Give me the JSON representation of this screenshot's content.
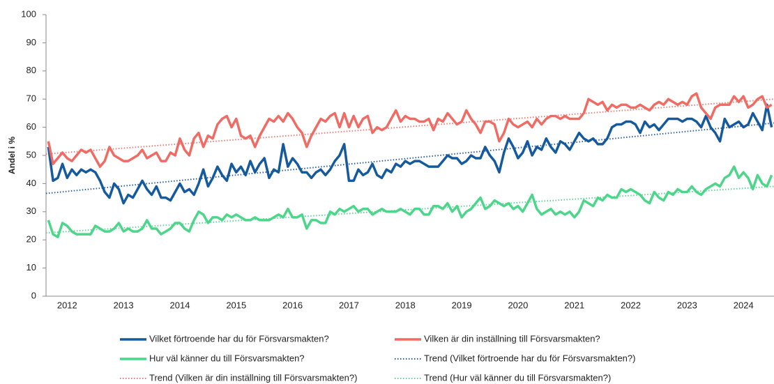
{
  "chart_data": {
    "type": "line",
    "y_label": "Andel i %",
    "ylim": [
      0,
      100
    ],
    "yticks": [
      0,
      10,
      20,
      30,
      40,
      50,
      60,
      70,
      80,
      90,
      100
    ],
    "grid": false,
    "categories": [
      null,
      null,
      null,
      null,
      "2012",
      null,
      null,
      null,
      null,
      null,
      null,
      null,
      null,
      null,
      null,
      null,
      "2013",
      null,
      null,
      null,
      null,
      null,
      null,
      null,
      null,
      null,
      null,
      null,
      "2014",
      null,
      null,
      null,
      null,
      null,
      null,
      null,
      null,
      null,
      null,
      null,
      "2015",
      null,
      null,
      null,
      null,
      null,
      null,
      null,
      null,
      null,
      null,
      null,
      "2016",
      null,
      null,
      null,
      null,
      null,
      null,
      null,
      null,
      null,
      null,
      null,
      "2017",
      null,
      null,
      null,
      null,
      null,
      null,
      null,
      null,
      null,
      null,
      null,
      "2018",
      null,
      null,
      null,
      null,
      null,
      null,
      null,
      null,
      null,
      null,
      null,
      "2019",
      null,
      null,
      null,
      null,
      null,
      null,
      null,
      null,
      null,
      null,
      null,
      "2020",
      null,
      null,
      null,
      null,
      null,
      null,
      null,
      null,
      null,
      null,
      null,
      "2021",
      null,
      null,
      null,
      null,
      null,
      null,
      null,
      null,
      null,
      null,
      null,
      "2022",
      null,
      null,
      null,
      null,
      null,
      null,
      null,
      null,
      null,
      null,
      null,
      "2023",
      null,
      null,
      null,
      null,
      null,
      null,
      null,
      null,
      null,
      null,
      null,
      "2024",
      null,
      null,
      null,
      null,
      null,
      null
    ],
    "series": [
      {
        "name": "Vilket förtroende har du för Försvarsmakten?",
        "color": "#155a9c",
        "values": [
          53,
          41,
          42,
          47,
          42,
          45,
          43,
          45,
          44,
          45,
          44,
          41,
          37,
          35,
          40,
          38,
          33,
          36,
          35,
          38,
          41,
          38,
          36,
          39,
          35,
          35,
          34,
          37,
          40,
          37,
          38,
          36,
          40,
          45,
          39,
          42,
          46,
          43,
          41,
          47,
          44,
          46,
          43,
          48,
          44,
          47,
          49,
          42,
          45,
          44,
          54,
          46,
          49,
          47,
          44,
          44,
          42,
          44,
          45,
          43,
          45,
          48,
          50,
          54,
          41,
          41,
          45,
          43,
          44,
          47,
          43,
          42,
          45,
          44,
          47,
          46,
          48,
          47,
          48,
          48,
          47,
          46,
          46,
          46,
          48,
          50,
          49,
          49,
          47,
          48,
          50,
          49,
          49,
          53,
          50,
          48,
          44,
          51,
          56,
          53,
          49,
          51,
          55,
          50,
          53,
          52,
          56,
          53,
          51,
          55,
          54,
          52,
          55,
          58,
          56,
          55,
          56,
          54,
          54,
          56,
          60,
          61,
          61,
          62,
          62,
          61,
          58,
          62,
          60,
          61,
          59,
          61,
          63,
          63,
          63,
          62,
          63,
          63,
          62,
          60,
          64,
          60,
          58,
          55,
          63,
          60,
          61,
          62,
          60,
          61,
          65,
          62,
          59,
          68,
          60
        ]
      },
      {
        "name": "Vilken är din inställning till Försvarsmakten?",
        "color": "#f06b64",
        "values": [
          55,
          47,
          49,
          51,
          49,
          48,
          50,
          52,
          51,
          52,
          49,
          46,
          48,
          53,
          50,
          49,
          48,
          48,
          49,
          50,
          52,
          49,
          50,
          51,
          48,
          48,
          51,
          50,
          56,
          52,
          50,
          56,
          58,
          53,
          57,
          56,
          61,
          63,
          64,
          60,
          63,
          57,
          56,
          57,
          53,
          57,
          60,
          63,
          62,
          64,
          62,
          65,
          63,
          60,
          58,
          53,
          57,
          60,
          63,
          62,
          64,
          65,
          60,
          65,
          60,
          64,
          60,
          63,
          64,
          58,
          60,
          59,
          60,
          63,
          66,
          62,
          64,
          63,
          63,
          62,
          62,
          63,
          59,
          63,
          62,
          65,
          63,
          61,
          62,
          66,
          63,
          61,
          58,
          62,
          62,
          61,
          55,
          58,
          63,
          61,
          60,
          61,
          62,
          60,
          63,
          61,
          63,
          64,
          64,
          63,
          64,
          63,
          63,
          63,
          65,
          70,
          69,
          68,
          69,
          66,
          68,
          67,
          68,
          68,
          67,
          67,
          68,
          67,
          66,
          68,
          69,
          68,
          70,
          69,
          68,
          69,
          68,
          71,
          72,
          67,
          65,
          63,
          67,
          68,
          68,
          68,
          71,
          69,
          71,
          67,
          68,
          70,
          71,
          67,
          68
        ]
      },
      {
        "name": "Hur väl känner du till Försvarsmakten?",
        "color": "#4cd68a",
        "values": [
          27,
          22,
          21,
          26,
          25,
          23,
          22,
          22,
          22,
          22,
          25,
          24,
          23,
          23,
          24,
          26,
          23,
          24,
          23,
          23,
          24,
          27,
          24,
          24,
          22,
          23,
          24,
          26,
          26,
          24,
          23,
          27,
          30,
          29,
          26,
          28,
          28,
          27,
          29,
          28,
          29,
          28,
          27,
          27,
          28,
          27,
          27,
          27,
          28,
          29,
          28,
          31,
          28,
          28,
          29,
          24,
          27,
          27,
          26,
          26,
          30,
          29,
          31,
          30,
          31,
          32,
          30,
          31,
          31,
          29,
          30,
          31,
          30,
          30,
          30,
          31,
          30,
          29,
          31,
          31,
          29,
          29,
          32,
          32,
          31,
          33,
          30,
          32,
          28,
          30,
          31,
          33,
          35,
          31,
          32,
          34,
          33,
          32,
          33,
          31,
          32,
          30,
          33,
          36,
          31,
          29,
          30,
          31,
          29,
          30,
          29,
          30,
          28,
          30,
          34,
          33,
          32,
          35,
          34,
          36,
          35,
          35,
          38,
          37,
          38,
          37,
          36,
          34,
          33,
          37,
          35,
          34,
          37,
          36,
          38,
          37,
          37,
          39,
          37,
          36,
          38,
          39,
          40,
          39,
          42,
          43,
          46,
          42,
          44,
          42,
          38,
          43,
          40,
          39,
          43
        ]
      }
    ],
    "trendlines": [
      {
        "name": "Trend (Vilket förtroende har du för Försvarsmakten?)",
        "color": "#2a5fa8",
        "values": [
          36.5,
          61.5
        ]
      },
      {
        "name": "Trend (Vilken är din inställning till Försvarsmakten?)",
        "color": "#f07a74",
        "values": [
          50.5,
          70
        ]
      },
      {
        "name": "Trend (Hur väl känner du till Försvarsmakten?)",
        "color": "#5fd496",
        "values": [
          22.5,
          39
        ]
      }
    ]
  }
}
